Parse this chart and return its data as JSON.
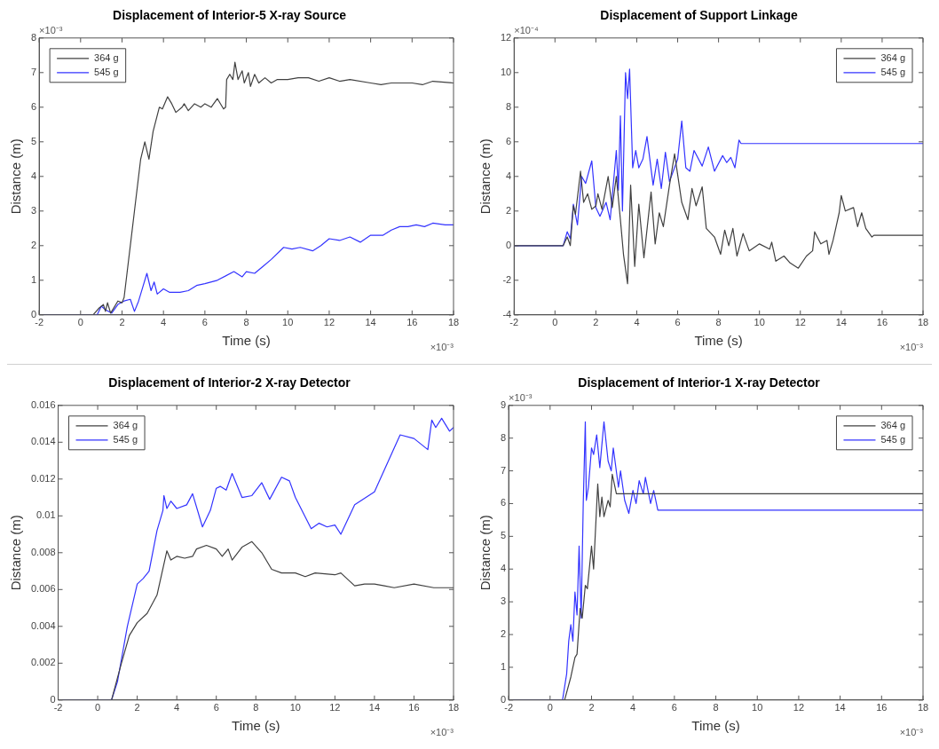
{
  "chart_data": [
    {
      "type": "line",
      "title": "Displacement of Interior-5 X-ray Source",
      "xlabel": "Time (s)",
      "ylabel": "Distance (m)",
      "annotations": [
        "×10⁻³",
        "×10⁻³"
      ],
      "legend": "top left",
      "xlim": [
        -2,
        18
      ],
      "xticks": [
        -2,
        0,
        2,
        4,
        6,
        8,
        10,
        12,
        14,
        16,
        18
      ],
      "ylim": [
        0,
        8
      ],
      "yticks": [
        0,
        1,
        2,
        3,
        4,
        5,
        6,
        7,
        8
      ],
      "series": [
        {
          "name": "364 g",
          "color": "#404040",
          "x": [
            -2,
            0.6,
            0.9,
            1.1,
            1.2,
            1.3,
            1.45,
            1.8,
            2.0,
            2.1,
            2.3,
            2.6,
            2.9,
            3.1,
            3.3,
            3.5,
            3.8,
            3.95,
            4.2,
            4.4,
            4.6,
            4.9,
            5.0,
            5.2,
            5.5,
            5.8,
            6.0,
            6.3,
            6.6,
            6.9,
            7.0,
            7.05,
            7.2,
            7.35,
            7.45,
            7.6,
            7.8,
            7.9,
            8.1,
            8.2,
            8.4,
            8.6,
            8.9,
            9.2,
            9.5,
            10,
            10.5,
            11,
            11.5,
            12,
            12.5,
            13,
            14,
            14.5,
            15,
            16,
            16.5,
            17,
            18
          ],
          "values": [
            0,
            0,
            0.2,
            0.3,
            0.1,
            0.35,
            0.05,
            0.4,
            0.35,
            0.5,
            1.5,
            3,
            4.5,
            5.0,
            4.5,
            5.3,
            6.0,
            5.95,
            6.3,
            6.1,
            5.85,
            6.0,
            6.1,
            5.9,
            6.1,
            6.0,
            6.1,
            6.0,
            6.25,
            5.95,
            6.0,
            6.8,
            6.95,
            6.8,
            7.3,
            6.8,
            7.05,
            6.7,
            7.0,
            6.6,
            6.95,
            6.7,
            6.85,
            6.7,
            6.8,
            6.8,
            6.85,
            6.85,
            6.75,
            6.85,
            6.75,
            6.8,
            6.7,
            6.65,
            6.7,
            6.7,
            6.65,
            6.75,
            6.7
          ]
        },
        {
          "name": "545 g",
          "color": "#3333ff",
          "x": [
            -2,
            0.8,
            1.0,
            1.2,
            1.5,
            1.8,
            2.1,
            2.4,
            2.6,
            2.8,
            3.0,
            3.2,
            3.4,
            3.55,
            3.7,
            4,
            4.3,
            4.8,
            5.2,
            5.6,
            6,
            6.6,
            7.4,
            7.8,
            8.0,
            8.4,
            8.8,
            9.2,
            9.8,
            10.2,
            10.6,
            11.2,
            11.6,
            12.0,
            12.5,
            13,
            13.5,
            14,
            14.6,
            15,
            15.4,
            15.8,
            16.2,
            16.6,
            17,
            17.6,
            18
          ],
          "values": [
            0,
            0,
            0.25,
            0.15,
            0.05,
            0.3,
            0.4,
            0.45,
            0.1,
            0.4,
            0.8,
            1.2,
            0.7,
            0.95,
            0.6,
            0.75,
            0.65,
            0.65,
            0.7,
            0.85,
            0.9,
            1.0,
            1.25,
            1.1,
            1.25,
            1.2,
            1.4,
            1.6,
            1.95,
            1.9,
            1.95,
            1.85,
            2.0,
            2.2,
            2.15,
            2.25,
            2.1,
            2.3,
            2.3,
            2.45,
            2.55,
            2.55,
            2.6,
            2.55,
            2.65,
            2.6,
            2.6
          ]
        }
      ]
    },
    {
      "type": "line",
      "title": "Displacement of Support Linkage",
      "xlabel": "Time (s)",
      "ylabel": "Distance (m)",
      "annotations": [
        "×10⁻⁴",
        "×10⁻³"
      ],
      "legend": "top right",
      "xlim": [
        -2,
        18
      ],
      "xticks": [
        -2,
        0,
        2,
        4,
        6,
        8,
        10,
        12,
        14,
        16,
        18
      ],
      "ylim": [
        -4,
        12
      ],
      "yticks": [
        -4,
        -2,
        0,
        2,
        4,
        6,
        8,
        10,
        12
      ],
      "series": [
        {
          "name": "364 g",
          "color": "#404040",
          "x": [
            -2,
            0.4,
            0.6,
            0.75,
            0.9,
            1.0,
            1.25,
            1.4,
            1.6,
            1.8,
            2.0,
            2.1,
            2.3,
            2.6,
            2.8,
            3.0,
            3.2,
            3.35,
            3.55,
            3.7,
            3.9,
            4.1,
            4.35,
            4.7,
            4.9,
            5.1,
            5.3,
            5.6,
            5.85,
            6.2,
            6.5,
            6.7,
            6.9,
            7.2,
            7.4,
            7.8,
            8.1,
            8.3,
            8.5,
            8.7,
            8.9,
            9.2,
            9.5,
            10,
            10.5,
            10.6,
            10.8,
            11.2,
            11.5,
            11.9,
            12.3,
            12.6,
            12.7,
            13.0,
            13.3,
            13.4,
            13.6,
            13.9,
            14.0,
            14.2,
            14.6,
            14.8,
            15.0,
            15.2,
            15.5,
            15.6,
            18
          ],
          "values": [
            0,
            0,
            0.5,
            0,
            2.3,
            1.8,
            4.3,
            2.5,
            3.0,
            2.1,
            2.3,
            3.0,
            2.1,
            4.0,
            2.2,
            4.0,
            1.5,
            -0.5,
            -2.2,
            3.5,
            -1.2,
            2.4,
            -0.7,
            3.1,
            0.1,
            1.9,
            1.1,
            3.5,
            5.3,
            2.5,
            1.5,
            3.3,
            2.3,
            3.4,
            1.0,
            0.5,
            -0.5,
            0.9,
            0,
            1.0,
            -0.6,
            0.7,
            -0.3,
            0.1,
            -0.2,
            0.2,
            -0.9,
            -0.6,
            -1.0,
            -1.3,
            -0.6,
            -0.3,
            0.8,
            0.1,
            0.3,
            -0.5,
            0.3,
            1.9,
            2.9,
            2.0,
            2.2,
            1.1,
            1.9,
            1.0,
            0.5,
            0.6,
            0.6
          ]
        },
        {
          "name": "545 g",
          "color": "#3333ff",
          "x": [
            -2,
            0.4,
            0.6,
            0.75,
            0.9,
            1.1,
            1.3,
            1.5,
            1.8,
            2.0,
            2.2,
            2.5,
            2.7,
            3.0,
            3.1,
            3.2,
            3.3,
            3.45,
            3.55,
            3.65,
            3.8,
            3.95,
            4.1,
            4.3,
            4.5,
            4.8,
            5.0,
            5.2,
            5.4,
            5.6,
            6.0,
            6.2,
            6.4,
            6.6,
            6.8,
            7.2,
            7.5,
            7.8,
            8.2,
            8.4,
            8.6,
            8.8,
            9.0,
            9.1,
            18
          ],
          "values": [
            0,
            0,
            0.8,
            0.4,
            2.4,
            1.2,
            4.0,
            3.6,
            4.9,
            2.2,
            1.7,
            2.5,
            1.5,
            5.5,
            3.2,
            7.5,
            2.0,
            10.0,
            8.5,
            10.2,
            4.5,
            5.5,
            4.5,
            5.0,
            6.3,
            3.5,
            5.0,
            3.3,
            5.4,
            3.7,
            5.0,
            7.2,
            4.5,
            4.3,
            5.5,
            4.6,
            5.7,
            4.3,
            5.2,
            4.8,
            5.1,
            4.5,
            6.1,
            5.9,
            5.9
          ]
        }
      ]
    },
    {
      "type": "line",
      "title": "Displacement of Interior-2 X-ray Detector",
      "xlabel": "Time (s)",
      "ylabel": "Distance (m)",
      "annotations": [
        "×10⁻³"
      ],
      "legend": "top left",
      "xlim": [
        -2,
        18
      ],
      "xticks": [
        -2,
        0,
        2,
        4,
        6,
        8,
        10,
        12,
        14,
        16,
        18
      ],
      "ylim": [
        0,
        0.016
      ],
      "yticks": [
        0,
        0.002,
        0.004,
        0.006,
        0.008,
        0.01,
        0.012,
        0.014,
        0.016
      ],
      "series": [
        {
          "name": "364 g",
          "color": "#404040",
          "x": [
            -2,
            0.7,
            1.2,
            1.6,
            2.0,
            2.5,
            3.0,
            3.5,
            3.7,
            4.0,
            4.4,
            4.8,
            5.0,
            5.5,
            6.0,
            6.3,
            6.6,
            6.8,
            7.3,
            7.8,
            8.3,
            8.8,
            9.3,
            10,
            10.5,
            11,
            12,
            12.3,
            13,
            13.5,
            14,
            14.5,
            15,
            16,
            17,
            18
          ],
          "values": [
            0,
            0,
            0.002,
            0.0035,
            0.0042,
            0.0047,
            0.0057,
            0.0081,
            0.0076,
            0.0078,
            0.0077,
            0.0078,
            0.0082,
            0.0084,
            0.0082,
            0.0078,
            0.0082,
            0.0076,
            0.0083,
            0.0086,
            0.008,
            0.0071,
            0.0069,
            0.0069,
            0.0067,
            0.0069,
            0.0068,
            0.0069,
            0.0062,
            0.0063,
            0.0063,
            0.0062,
            0.0061,
            0.0063,
            0.0061,
            0.0061
          ]
        },
        {
          "name": "545 g",
          "color": "#3333ff",
          "x": [
            -2,
            0.7,
            1.0,
            1.5,
            2.0,
            2.3,
            2.6,
            3.0,
            3.3,
            3.35,
            3.5,
            3.7,
            4.0,
            4.5,
            4.8,
            5.3,
            5.7,
            6.0,
            6.2,
            6.5,
            6.8,
            7.3,
            7.8,
            8.3,
            8.7,
            9.3,
            9.7,
            10.0,
            10.8,
            11.2,
            11.6,
            12.0,
            12.3,
            13.0,
            14.0,
            14.5,
            15.3,
            16.0,
            16.7,
            16.9,
            17.1,
            17.4,
            17.8,
            18
          ],
          "values": [
            0,
            0,
            0.001,
            0.004,
            0.0063,
            0.0066,
            0.007,
            0.0092,
            0.0103,
            0.0111,
            0.0104,
            0.0108,
            0.0104,
            0.0106,
            0.0112,
            0.0094,
            0.0103,
            0.0115,
            0.0116,
            0.0114,
            0.0123,
            0.011,
            0.0111,
            0.0118,
            0.0109,
            0.0121,
            0.0119,
            0.011,
            0.0093,
            0.0096,
            0.0094,
            0.0095,
            0.009,
            0.0106,
            0.0113,
            0.0125,
            0.0144,
            0.0142,
            0.0136,
            0.0152,
            0.0148,
            0.0153,
            0.0146,
            0.0148
          ]
        }
      ]
    },
    {
      "type": "line",
      "title": "Displacement of Interior-1 X-ray Detector",
      "xlabel": "Time (s)",
      "ylabel": "Distance (m)",
      "annotations": [
        "×10⁻³",
        "×10⁻³"
      ],
      "legend": "top right",
      "xlim": [
        -2,
        18
      ],
      "xticks": [
        -2,
        0,
        2,
        4,
        6,
        8,
        10,
        12,
        14,
        16,
        18
      ],
      "ylim": [
        0,
        9
      ],
      "yticks": [
        0,
        1,
        2,
        3,
        4,
        5,
        6,
        7,
        8,
        9
      ],
      "series": [
        {
          "name": "364 g",
          "color": "#404040",
          "x": [
            -2,
            0.7,
            1.0,
            1.2,
            1.3,
            1.45,
            1.55,
            1.7,
            1.8,
            2.0,
            2.1,
            2.3,
            2.4,
            2.5,
            2.6,
            2.8,
            2.9,
            3.0,
            3.2,
            18
          ],
          "values": [
            0,
            0,
            0.7,
            1.3,
            1.4,
            2.8,
            2.5,
            3.5,
            3.4,
            4.7,
            4.0,
            6.6,
            5.6,
            6.2,
            5.6,
            6.1,
            5.9,
            6.9,
            6.3,
            6.3
          ]
        },
        {
          "name": "545 g",
          "color": "#3333ff",
          "x": [
            -2,
            0.6,
            0.8,
            0.9,
            1.0,
            1.1,
            1.2,
            1.3,
            1.4,
            1.5,
            1.6,
            1.7,
            1.75,
            1.85,
            2.0,
            2.1,
            2.25,
            2.4,
            2.6,
            2.8,
            2.95,
            3.05,
            3.3,
            3.4,
            3.6,
            3.8,
            4.0,
            4.15,
            4.3,
            4.5,
            4.6,
            4.85,
            5.0,
            5.2,
            18
          ],
          "values": [
            0,
            0,
            0.8,
            1.8,
            2.3,
            1.8,
            3.3,
            2.6,
            4.7,
            2.5,
            6.0,
            8.5,
            6.1,
            6.5,
            7.7,
            7.5,
            8.1,
            7.1,
            8.5,
            7.3,
            7.0,
            7.7,
            6.5,
            7.0,
            6.1,
            5.7,
            6.4,
            6.0,
            6.7,
            6.3,
            6.8,
            6.0,
            6.4,
            5.8,
            5.8
          ]
        }
      ]
    }
  ]
}
